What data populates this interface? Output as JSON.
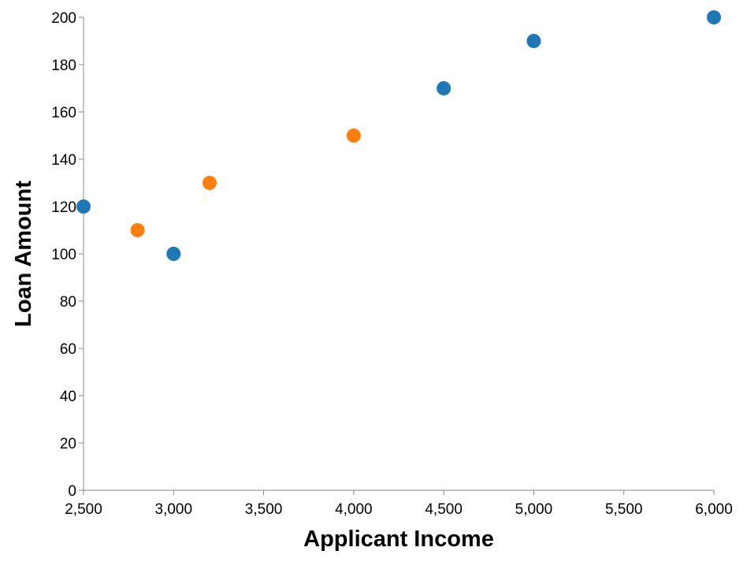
{
  "chart_data": {
    "type": "scatter",
    "title": "",
    "xlabel": "Applicant Income",
    "ylabel": "Loan Amount",
    "xlim": [
      2500,
      6000
    ],
    "ylim": [
      0,
      200
    ],
    "x_ticks": [
      2500,
      3000,
      3500,
      4000,
      4500,
      5000,
      5500,
      6000
    ],
    "x_tick_labels": [
      "2,500",
      "3,000",
      "3,500",
      "4,000",
      "4,500",
      "5,000",
      "5,500",
      "6,000"
    ],
    "y_ticks": [
      0,
      20,
      40,
      60,
      80,
      100,
      120,
      140,
      160,
      180,
      200
    ],
    "y_tick_labels": [
      "0",
      "20",
      "40",
      "60",
      "80",
      "100",
      "120",
      "140",
      "160",
      "180",
      "200"
    ],
    "grid": false,
    "legend": "none",
    "colors": {
      "blue": "#1f77b4",
      "orange": "#ff7f0e",
      "axis": "#888888"
    },
    "points": [
      {
        "x": 2500,
        "y": 120,
        "color": "#1f77b4"
      },
      {
        "x": 2800,
        "y": 110,
        "color": "#ff7f0e"
      },
      {
        "x": 3000,
        "y": 100,
        "color": "#1f77b4"
      },
      {
        "x": 3200,
        "y": 130,
        "color": "#ff7f0e"
      },
      {
        "x": 4000,
        "y": 150,
        "color": "#ff7f0e"
      },
      {
        "x": 4500,
        "y": 170,
        "color": "#1f77b4"
      },
      {
        "x": 5000,
        "y": 190,
        "color": "#1f77b4"
      },
      {
        "x": 6000,
        "y": 200,
        "color": "#1f77b4"
      }
    ]
  }
}
